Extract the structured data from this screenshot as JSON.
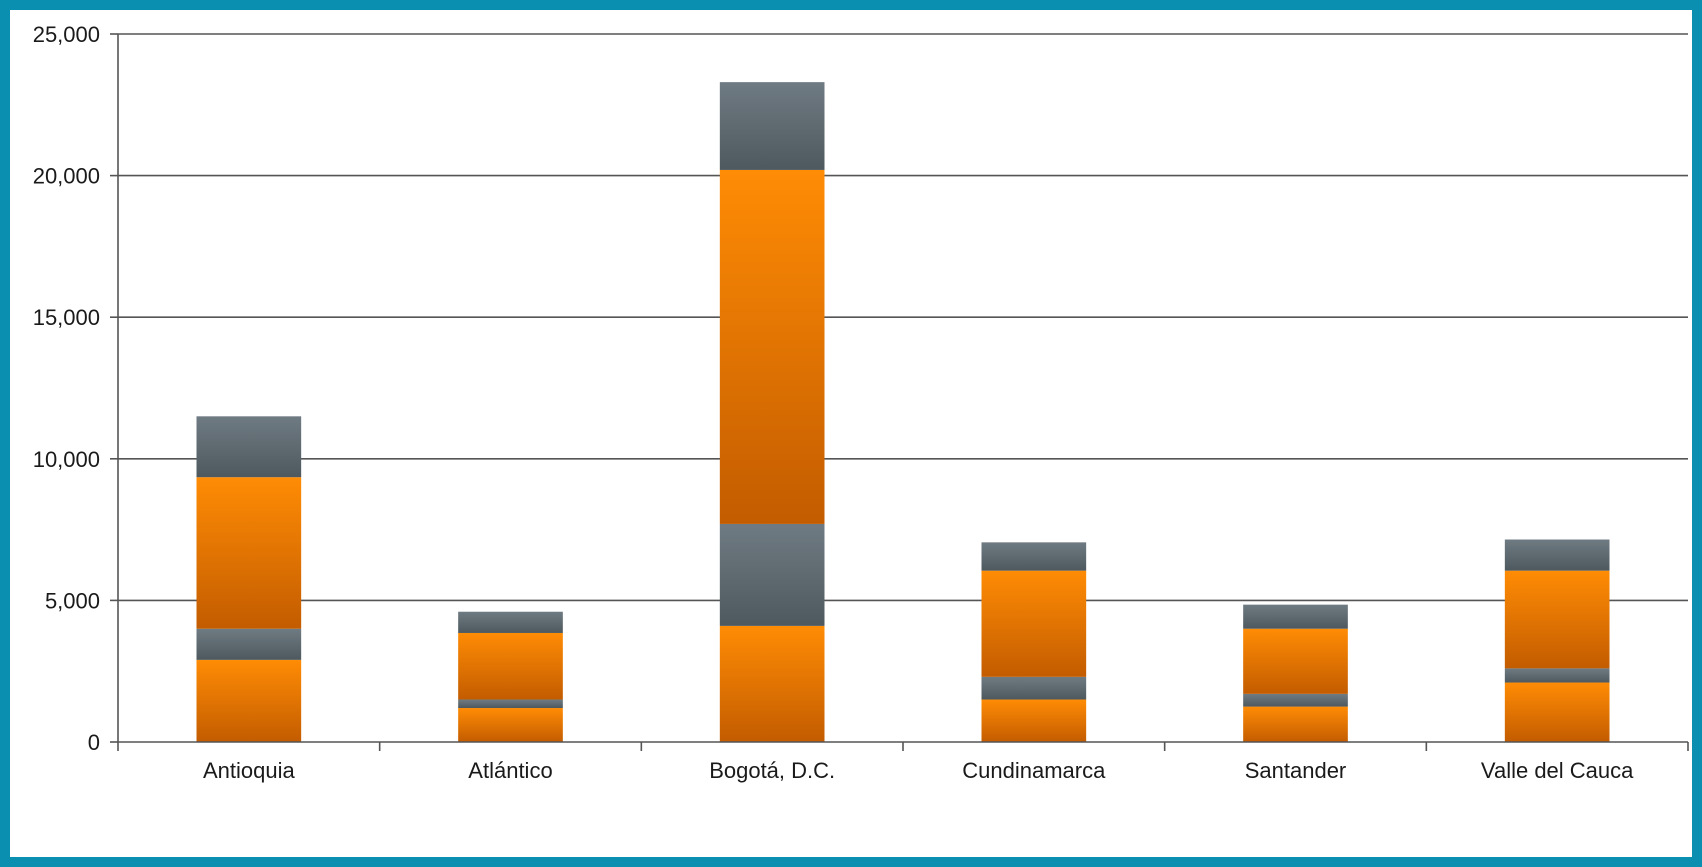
{
  "chart_data": {
    "type": "bar",
    "stacked": true,
    "title": "",
    "xlabel": "",
    "ylabel": "",
    "ylim": [
      0,
      25000
    ],
    "yticks": [
      0,
      5000,
      10000,
      15000,
      20000,
      25000
    ],
    "ytick_labels": [
      "0",
      "5,000",
      "10,000",
      "15,000",
      "20,000",
      "25,000"
    ],
    "grid": true,
    "legend": "none",
    "categories": [
      "Antioquia",
      "Atlántico",
      "Bogotá, D.C.",
      "Cundinamarca",
      "Santander",
      "Valle del Cauca"
    ],
    "series": [
      {
        "color": "#f08000",
        "values": [
          2900,
          1200,
          4100,
          1500,
          1250,
          2100
        ]
      },
      {
        "color": "#5b6870",
        "values": [
          1100,
          300,
          3600,
          800,
          450,
          500
        ]
      },
      {
        "color": "#f08000",
        "values": [
          5350,
          2350,
          12500,
          3750,
          2300,
          3450
        ]
      },
      {
        "color": "#5b6870",
        "values": [
          2150,
          750,
          3100,
          1000,
          850,
          1100
        ]
      }
    ]
  }
}
